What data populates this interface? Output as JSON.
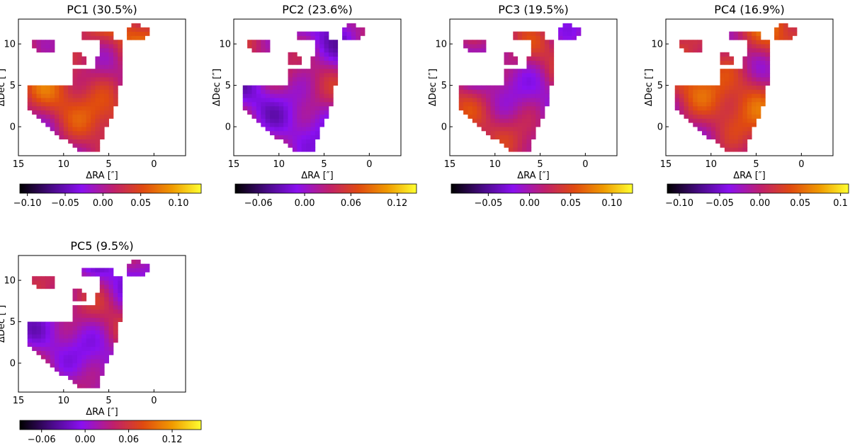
{
  "figure": {
    "xlabel": "ΔRA [″]",
    "ylabel": "ΔDec [″]"
  },
  "chart_data": [
    {
      "type": "heatmap",
      "id": "pc1",
      "title": "PC1 (30.5%)",
      "xlabel": "ΔRA [″]",
      "ylabel": "ΔDec [″]",
      "xlim": [
        15,
        -3.5
      ],
      "ylim": [
        -3.5,
        13
      ],
      "xticks": [
        15,
        10,
        5,
        0
      ],
      "yticks": [
        0,
        5,
        10
      ],
      "colorbar": {
        "range": [
          -0.11,
          0.13
        ],
        "ticks": [
          -0.1,
          -0.05,
          0.0,
          0.05,
          0.1
        ],
        "ticklabels": [
          "−0.10",
          "−0.05",
          "0.00",
          "0.05",
          "0.10"
        ]
      },
      "dominant_value": 0.03
    },
    {
      "type": "heatmap",
      "id": "pc2",
      "title": "PC2 (23.6%)",
      "xlabel": "ΔRA [″]",
      "ylabel": "ΔDec [″]",
      "xlim": [
        15,
        -3.5
      ],
      "ylim": [
        -3.5,
        13
      ],
      "xticks": [
        15,
        10,
        5,
        0
      ],
      "yticks": [
        0,
        5,
        10
      ],
      "colorbar": {
        "range": [
          -0.09,
          0.145
        ],
        "ticks": [
          -0.06,
          0.0,
          0.06,
          0.12
        ],
        "ticklabels": [
          "−0.06",
          "0.00",
          "0.06",
          "0.12"
        ]
      },
      "dominant_value": 0.01
    },
    {
      "type": "heatmap",
      "id": "pc3",
      "title": "PC3 (19.5%)",
      "xlabel": "ΔRA [″]",
      "ylabel": "ΔDec [″]",
      "xlim": [
        15,
        -3.5
      ],
      "ylim": [
        -3.5,
        13
      ],
      "xticks": [
        15,
        10,
        5,
        0
      ],
      "yticks": [
        0,
        5,
        10
      ],
      "colorbar": {
        "range": [
          -0.095,
          0.125
        ],
        "ticks": [
          -0.05,
          0.0,
          0.05,
          0.1
        ],
        "ticklabels": [
          "−0.05",
          "0.00",
          "0.05",
          "0.10"
        ]
      },
      "dominant_value": 0.01
    },
    {
      "type": "heatmap",
      "id": "pc4",
      "title": "PC4 (16.9%)",
      "xlabel": "ΔRA [″]",
      "ylabel": "ΔDec [″]",
      "xlim": [
        15,
        -3.5
      ],
      "ylim": [
        -3.5,
        13
      ],
      "xticks": [
        15,
        10,
        5,
        0
      ],
      "yticks": [
        0,
        5,
        10
      ],
      "colorbar": {
        "range": [
          -0.115,
          0.11
        ],
        "ticks": [
          -0.1,
          -0.05,
          0.0,
          0.05,
          0.1
        ],
        "ticklabels": [
          "−0.10",
          "−0.05",
          "0.00",
          "0.05",
          "0.1"
        ]
      },
      "dominant_value": 0.02
    },
    {
      "type": "heatmap",
      "id": "pc5",
      "title": "PC5 (9.5%)",
      "xlabel": "ΔRA [″]",
      "ylabel": "ΔDec [″]",
      "xlim": [
        15,
        -3.5
      ],
      "ylim": [
        -3.5,
        13
      ],
      "xticks": [
        15,
        10,
        5,
        0
      ],
      "yticks": [
        0,
        5,
        10
      ],
      "colorbar": {
        "range": [
          -0.09,
          0.16
        ],
        "ticks": [
          -0.06,
          0.0,
          0.06,
          0.12
        ],
        "ticklabels": [
          "−0.06",
          "0.00",
          "0.06",
          "0.12"
        ]
      },
      "dominant_value": 0.02
    }
  ]
}
